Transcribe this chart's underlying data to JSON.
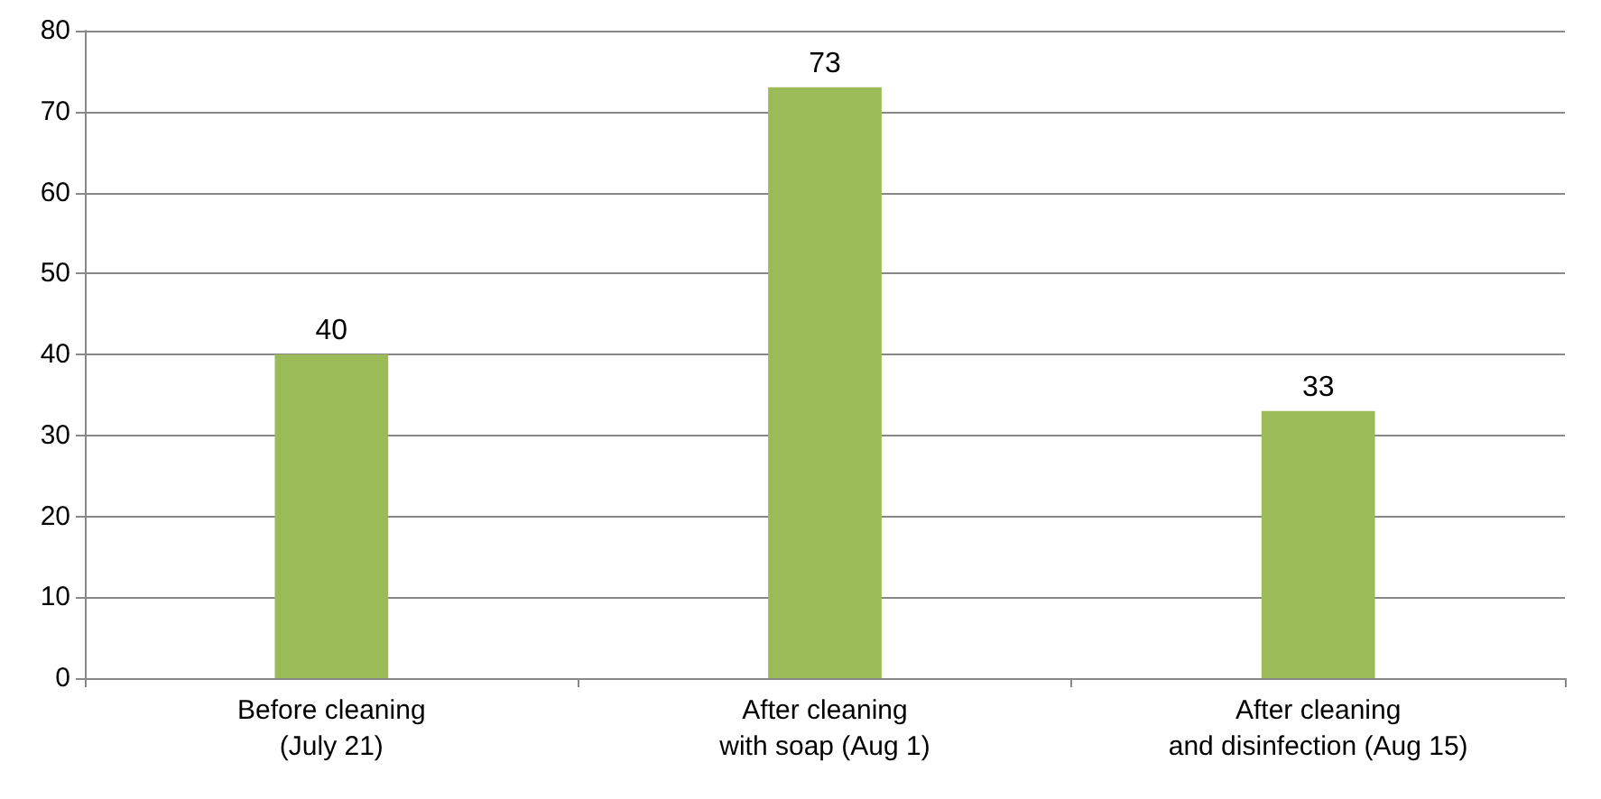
{
  "chart_data": {
    "type": "bar",
    "categories": [
      "Before cleaning\n(July 21)",
      "After cleaning\nwith soap (Aug 1)",
      "After cleaning\nand disinfection (Aug 15)"
    ],
    "values": [
      40,
      73,
      33
    ],
    "color": "#9bbb59",
    "ylim": [
      0,
      80
    ],
    "yticks": [
      0,
      10,
      20,
      30,
      40,
      50,
      60,
      70,
      80
    ],
    "grid": "y",
    "data_labels": true
  }
}
